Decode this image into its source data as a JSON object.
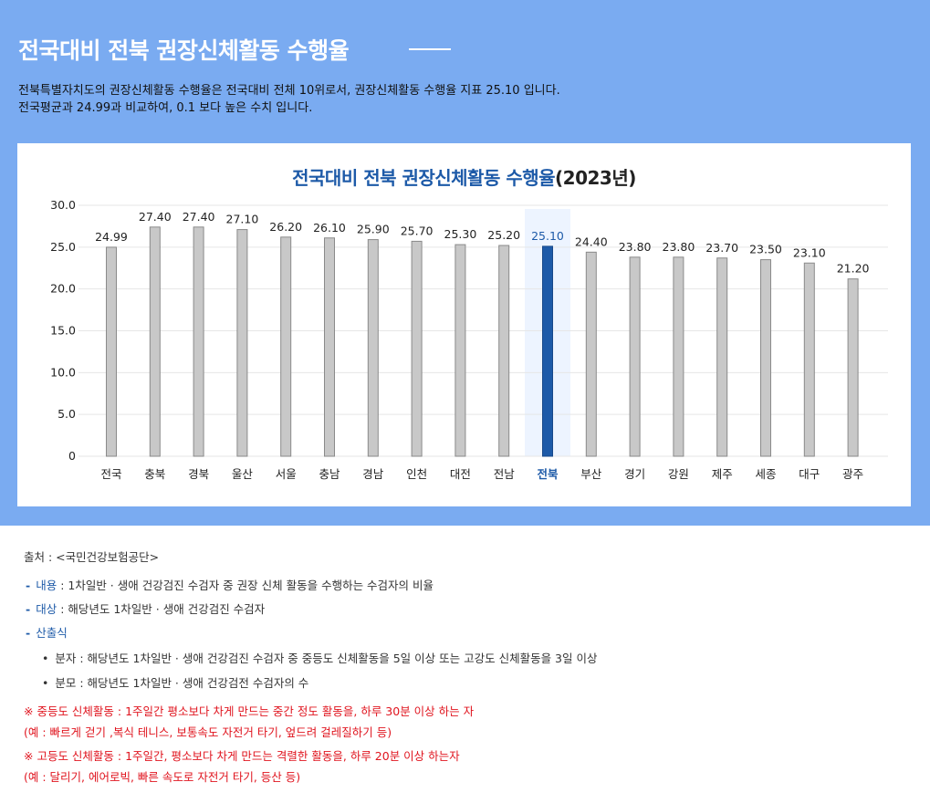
{
  "header": {
    "title": "전국대비 전북 권장신체활동 수행율",
    "summary_line1": "전북특별자치도의 권장신체활동 수행율은 전국대비 전체 10위로서, 권장신체활동 수행율 지표 25.10 입니다.",
    "summary_line2": "전국평균과 24.99과 비교하여, 0.1 보다 높은 수치 입니다."
  },
  "chart_data": {
    "type": "bar",
    "title_main": "전국대비 전북 권장신체활동 수행율",
    "title_year": "(2023년)",
    "categories": [
      "전국",
      "충북",
      "경북",
      "울산",
      "서울",
      "충남",
      "경남",
      "인천",
      "대전",
      "전남",
      "전북",
      "부산",
      "경기",
      "강원",
      "제주",
      "세종",
      "대구",
      "광주"
    ],
    "values": [
      24.99,
      27.4,
      27.4,
      27.1,
      26.2,
      26.1,
      25.9,
      25.7,
      25.3,
      25.2,
      25.1,
      24.4,
      23.8,
      23.8,
      23.7,
      23.5,
      23.1,
      21.2
    ],
    "value_labels": [
      "24.99",
      "27.40",
      "27.40",
      "27.10",
      "26.20",
      "26.10",
      "25.90",
      "25.70",
      "25.30",
      "25.20",
      "25.10",
      "24.40",
      "23.80",
      "23.80",
      "23.70",
      "23.50",
      "23.10",
      "21.20"
    ],
    "highlight": "전북",
    "ylim": [
      0,
      30
    ],
    "yticks": [
      0,
      5,
      10,
      15,
      20,
      25,
      30
    ],
    "ytick_labels": [
      "0",
      "5.0",
      "10.0",
      "15.0",
      "20.0",
      "25.0",
      "30.0"
    ],
    "grid": true,
    "colors": {
      "bar": "#c8c8c8",
      "bar_border": "#8a8a8a",
      "highlight": "#1d5aa8",
      "highlight_bg": "#edf4ff",
      "grid": "#e6e6e6"
    }
  },
  "notes": {
    "source": "출처 : <국민건강보험공단>",
    "content_key": "내용",
    "content_text": " : 1차일반 · 생애 건강검진 수검자 중 권장 신체 활동을 수행하는 수검자의 비율",
    "target_key": "대상",
    "target_text": " : 해당년도 1차일반 · 생애 건강검진 수검자",
    "formula_key": "산출식",
    "numerator": "분자 : 해당년도 1차일반 · 생애 건강검진 수검자 중 중등도 신체활동을 5일 이상 또는 고강도 신체활동을 3일 이상",
    "denominator": "분모 : 해당년도 1차일반 · 생애 건강검전 수검자의 수",
    "moderate_line1": "※ 중등도 신체활동 : 1주일간 평소보다 차게 만드는 중간 정도 활동을, 하루 30분 이상 하는 자",
    "moderate_line2": "(예 : 빠르게 걷기 ,복식 테니스, 보통속도 자전거 타기, 엎드려 걸레질하기 등)",
    "vigorous_line1": "※ 고등도 신체활동 : 1주일간, 평소보다 차게 만드는 격렬한 활동을, 하루 20분 이상 하는자",
    "vigorous_line2": "(예 : 달리기, 에어로빅, 빠른 속도로 자전거 타기, 등산 등)"
  }
}
